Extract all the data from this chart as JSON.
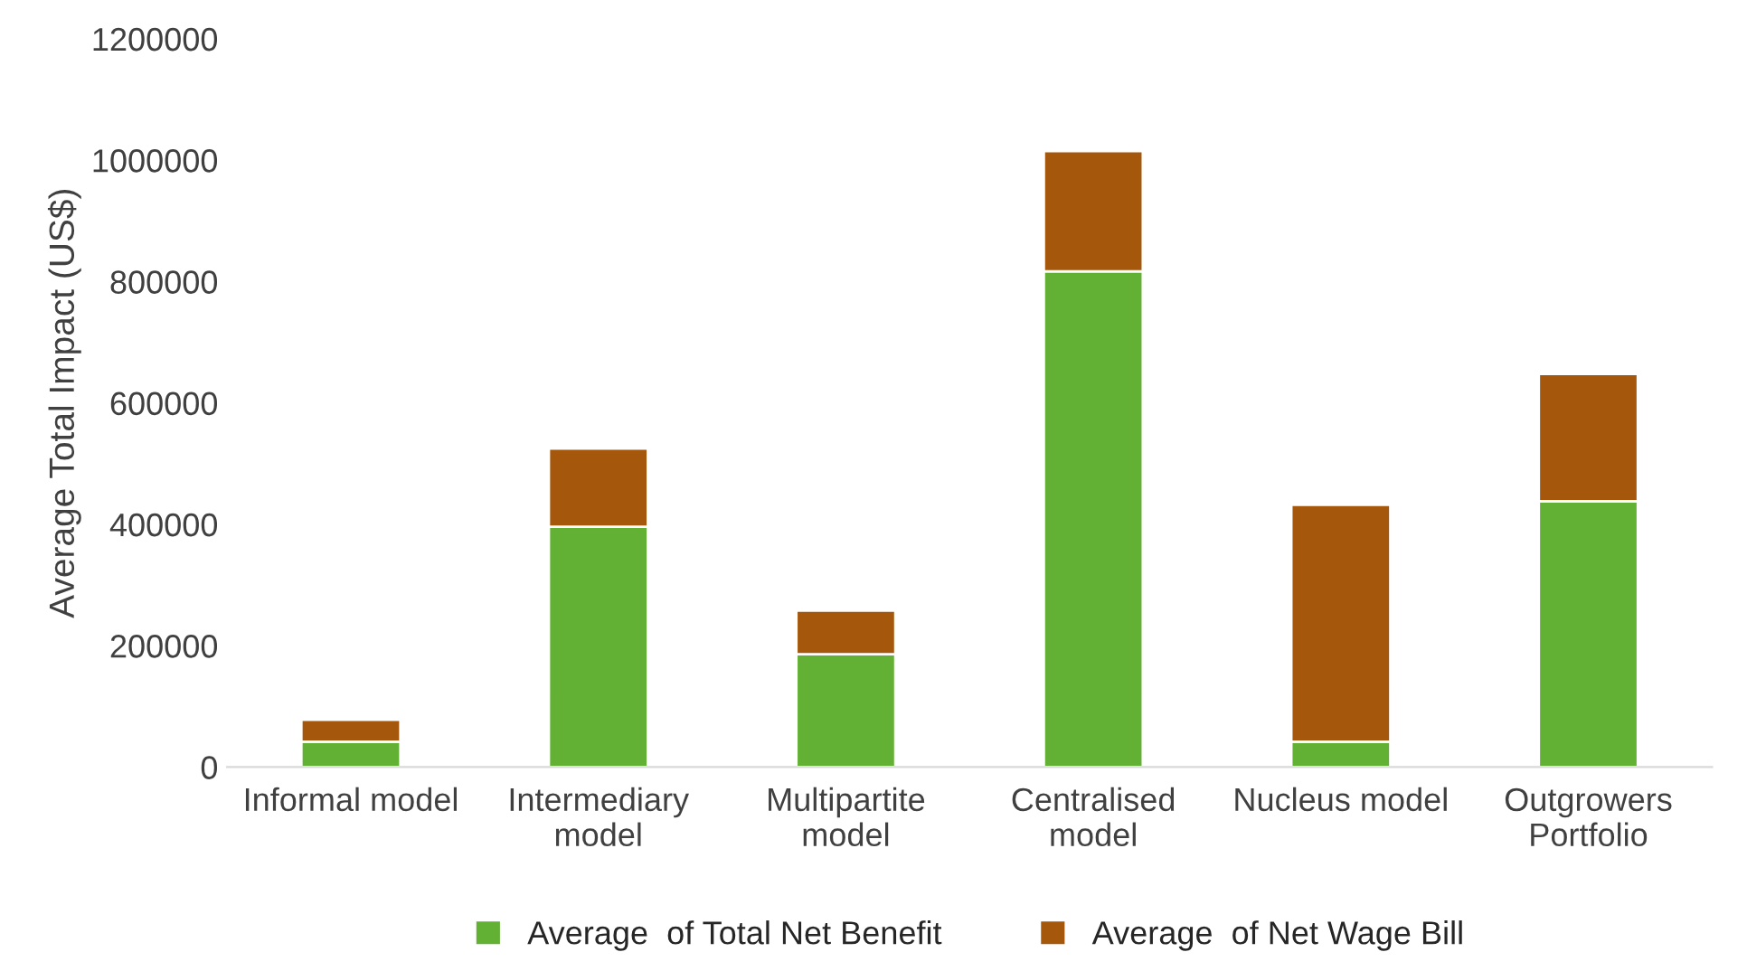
{
  "chart_data": {
    "type": "bar",
    "stacked": true,
    "ylabel": "Average Total Impact (US$)",
    "categories": [
      "Informal model",
      "Intermediary\nmodel",
      "Multipartite\nmodel",
      "Centralised\nmodel",
      "Nucleus model",
      "Outgrowers\nPortfolio"
    ],
    "series": [
      {
        "name": "Average  of Total Net Benefit",
        "color": "#62b034",
        "values": [
          42000,
          396000,
          186000,
          817000,
          42000,
          438000
        ]
      },
      {
        "name": "Average  of Net Wage Bill",
        "color": "#a5570b",
        "values": [
          36000,
          129000,
          72000,
          198000,
          390000,
          210000
        ]
      }
    ],
    "ylim": [
      0,
      1200000
    ],
    "yticks": [
      0,
      200000,
      400000,
      600000,
      800000,
      1000000,
      1200000
    ],
    "grid": false,
    "legend": "bottom"
  }
}
